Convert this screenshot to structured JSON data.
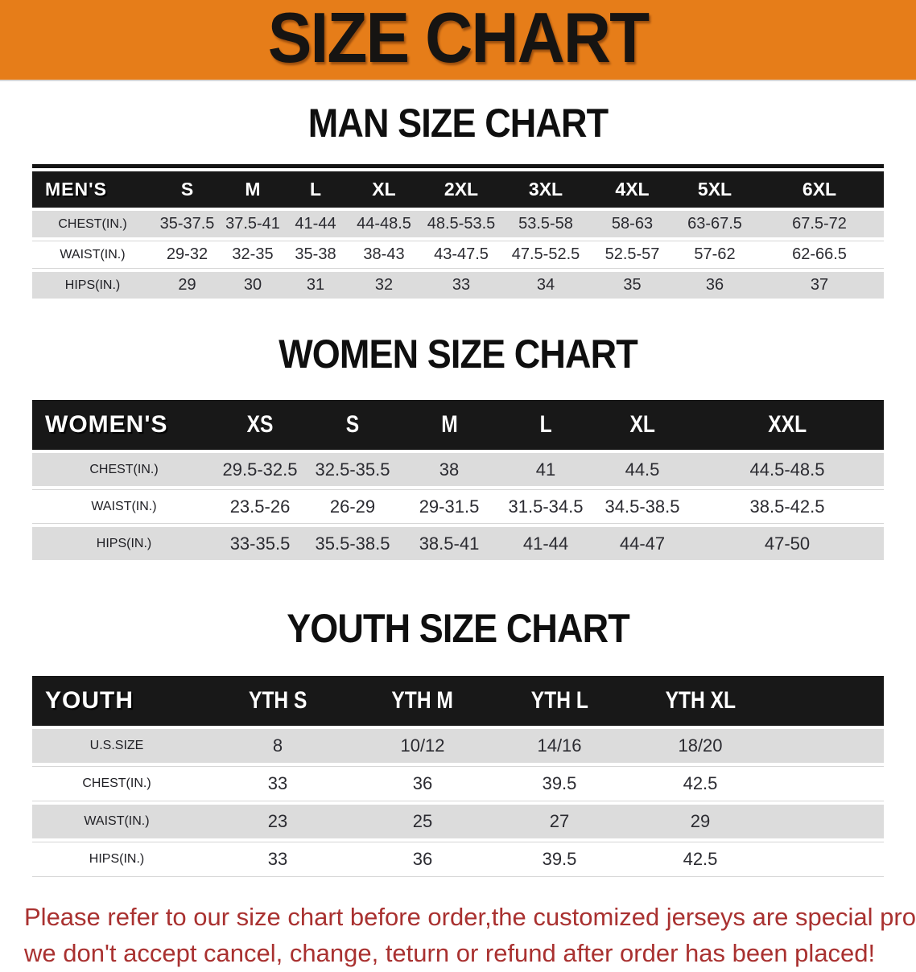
{
  "banner": {
    "title": "SIZE CHART",
    "bg_color": "#E67D19"
  },
  "sections": [
    {
      "heading": "MAN SIZE CHART",
      "table": {
        "corner": "MEN'S",
        "columns": [
          "S",
          "M",
          "L",
          "XL",
          "2XL",
          "3XL",
          "4XL",
          "5XL",
          "6XL"
        ],
        "rows": [
          {
            "label": "CHEST(IN.)",
            "values": [
              "35-37.5",
              "37.5-41",
              "41-44",
              "44-48.5",
              "48.5-53.5",
              "53.5-58",
              "58-63",
              "63-67.5",
              "67.5-72"
            ]
          },
          {
            "label": "WAIST(IN.)",
            "values": [
              "29-32",
              "32-35",
              "35-38",
              "38-43",
              "43-47.5",
              "47.5-52.5",
              "52.5-57",
              "57-62",
              "62-66.5"
            ]
          },
          {
            "label": "HIPS(IN.)",
            "values": [
              "29",
              "30",
              "31",
              "32",
              "33",
              "34",
              "35",
              "36",
              "37"
            ]
          }
        ]
      }
    },
    {
      "heading": "WOMEN SIZE CHART",
      "table": {
        "corner": "WOMEN'S",
        "columns": [
          "XS",
          "S",
          "M",
          "L",
          "XL",
          "XXL"
        ],
        "rows": [
          {
            "label": "CHEST(IN.)",
            "values": [
              "29.5-32.5",
              "32.5-35.5",
              "38",
              "41",
              "44.5",
              "44.5-48.5"
            ]
          },
          {
            "label": "WAIST(IN.)",
            "values": [
              "23.5-26",
              "26-29",
              "29-31.5",
              "31.5-34.5",
              "34.5-38.5",
              "38.5-42.5"
            ]
          },
          {
            "label": "HIPS(IN.)",
            "values": [
              "33-35.5",
              "35.5-38.5",
              "38.5-41",
              "41-44",
              "44-47",
              "47-50"
            ]
          }
        ]
      }
    },
    {
      "heading": "YOUTH SIZE CHART",
      "table": {
        "corner": "YOUTH",
        "columns": [
          "YTH S",
          "YTH M",
          "YTH L",
          "YTH XL"
        ],
        "rows": [
          {
            "label": "U.S.SIZE",
            "values": [
              "8",
              "10/12",
              "14/16",
              "18/20"
            ]
          },
          {
            "label": "CHEST(IN.)",
            "values": [
              "33",
              "36",
              "39.5",
              "42.5"
            ]
          },
          {
            "label": "WAIST(IN.)",
            "values": [
              "23",
              "25",
              "27",
              "29"
            ]
          },
          {
            "label": "HIPS(IN.)",
            "values": [
              "33",
              "36",
              "39.5",
              "42.5"
            ]
          }
        ]
      }
    }
  ],
  "footer_note": {
    "line1": "Please refer to our size chart before order,the customized jerseys are special products,",
    "line2": "we don't accept cancel, change, teturn or refund after order has been placed!",
    "color": "#A93130"
  }
}
